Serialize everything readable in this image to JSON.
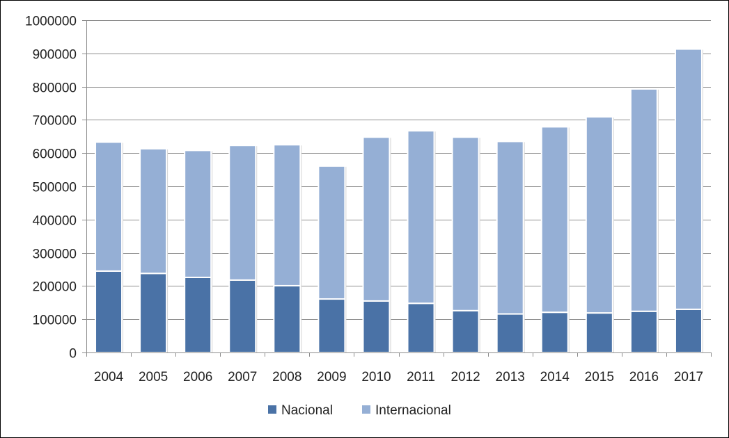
{
  "chart_data": {
    "type": "bar",
    "stacked": true,
    "categories": [
      "2004",
      "2005",
      "2006",
      "2007",
      "2008",
      "2009",
      "2010",
      "2011",
      "2012",
      "2013",
      "2014",
      "2015",
      "2016",
      "2017"
    ],
    "series": [
      {
        "name": "Nacional",
        "color": "#4a72a6",
        "values": [
          245000,
          238000,
          226000,
          218000,
          201000,
          161000,
          155000,
          148000,
          126000,
          116000,
          121000,
          119000,
          124000,
          130000
        ]
      },
      {
        "name": "Internacional",
        "color": "#95afd5",
        "values": [
          388000,
          375000,
          382000,
          405000,
          424000,
          400000,
          493000,
          519000,
          522000,
          519000,
          558000,
          590000,
          669000,
          783000
        ]
      }
    ],
    "ylim": [
      0,
      1000000
    ],
    "yticks": [
      "0",
      "100000",
      "200000",
      "300000",
      "400000",
      "500000",
      "600000",
      "700000",
      "800000",
      "900000",
      "1000000"
    ],
    "grid": true,
    "legend_position": "bottom"
  }
}
